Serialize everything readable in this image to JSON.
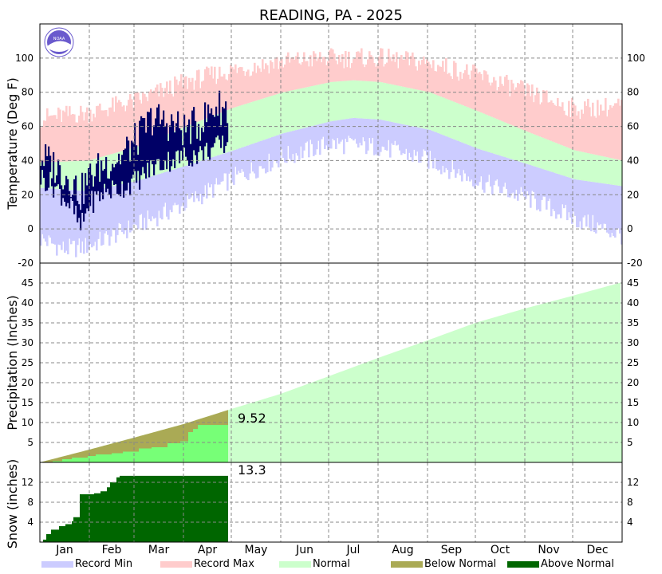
{
  "chart_data": {
    "type": "area",
    "title": "READING, PA - 2025",
    "months": [
      "Jan",
      "Feb",
      "Mar",
      "Apr",
      "May",
      "Jun",
      "Jul",
      "Aug",
      "Sep",
      "Oct",
      "Nov",
      "Dec"
    ],
    "colors": {
      "record_min": "#ccccff",
      "record_max": "#ffcccc",
      "normal": "#ccffcc",
      "below_normal": "#aaaa55",
      "above_normal": "#006600",
      "observed_temp": "#000066",
      "observed_precip": "#77ff77"
    },
    "legend": [
      {
        "key": "record_min",
        "label": "Record Min"
      },
      {
        "key": "record_max",
        "label": "Record Max"
      },
      {
        "key": "normal",
        "label": "Normal"
      },
      {
        "key": "below_normal",
        "label": "Below Normal"
      },
      {
        "key": "above_normal",
        "label": "Above Normal"
      }
    ],
    "temperature": {
      "ylabel": "Temperature (Deg F)",
      "ylim": [
        -20,
        120
      ],
      "ticks": [
        -20,
        0,
        20,
        40,
        60,
        80,
        100
      ],
      "normal_low_anchors": [
        [
          1,
          24
        ],
        [
          30,
          22
        ],
        [
          60,
          28
        ],
        [
          91,
          37
        ],
        [
          121,
          46
        ],
        [
          152,
          56
        ],
        [
          182,
          63
        ],
        [
          196,
          65
        ],
        [
          213,
          64
        ],
        [
          244,
          58
        ],
        [
          274,
          47
        ],
        [
          305,
          38
        ],
        [
          335,
          29
        ],
        [
          365,
          25
        ]
      ],
      "normal_high_anchors": [
        [
          1,
          39
        ],
        [
          30,
          40
        ],
        [
          60,
          48
        ],
        [
          91,
          60
        ],
        [
          121,
          71
        ],
        [
          152,
          80
        ],
        [
          182,
          86
        ],
        [
          196,
          87
        ],
        [
          213,
          86
        ],
        [
          244,
          80
        ],
        [
          274,
          69
        ],
        [
          305,
          57
        ],
        [
          335,
          46
        ],
        [
          365,
          40
        ]
      ],
      "record_low_anchors": [
        [
          1,
          -6
        ],
        [
          15,
          -12
        ],
        [
          30,
          -10
        ],
        [
          45,
          -4
        ],
        [
          60,
          2
        ],
        [
          91,
          15
        ],
        [
          121,
          30
        ],
        [
          152,
          42
        ],
        [
          182,
          50
        ],
        [
          213,
          48
        ],
        [
          244,
          40
        ],
        [
          274,
          28
        ],
        [
          305,
          18
        ],
        [
          335,
          6
        ],
        [
          365,
          -4
        ]
      ],
      "record_high_anchors": [
        [
          1,
          65
        ],
        [
          30,
          68
        ],
        [
          60,
          75
        ],
        [
          91,
          86
        ],
        [
          121,
          93
        ],
        [
          152,
          98
        ],
        [
          182,
          100
        ],
        [
          213,
          100
        ],
        [
          244,
          97
        ],
        [
          274,
          90
        ],
        [
          305,
          80
        ],
        [
          335,
          70
        ],
        [
          365,
          72
        ]
      ],
      "observed_days": 118,
      "observed_high_anchors": [
        [
          1,
          42
        ],
        [
          10,
          36
        ],
        [
          20,
          28
        ],
        [
          25,
          20
        ],
        [
          30,
          30
        ],
        [
          40,
          38
        ],
        [
          50,
          42
        ],
        [
          60,
          52
        ],
        [
          70,
          65
        ],
        [
          80,
          62
        ],
        [
          90,
          58
        ],
        [
          100,
          62
        ],
        [
          110,
          72
        ],
        [
          118,
          70
        ]
      ],
      "observed_low_anchors": [
        [
          1,
          30
        ],
        [
          10,
          24
        ],
        [
          20,
          12
        ],
        [
          25,
          0
        ],
        [
          30,
          14
        ],
        [
          40,
          22
        ],
        [
          50,
          24
        ],
        [
          60,
          28
        ],
        [
          70,
          36
        ],
        [
          80,
          40
        ],
        [
          90,
          42
        ],
        [
          100,
          44
        ],
        [
          110,
          48
        ],
        [
          118,
          50
        ]
      ]
    },
    "precipitation": {
      "ylabel": "Precipitation (Inches)",
      "ylim": [
        0,
        50
      ],
      "ticks": [
        5,
        10,
        15,
        20,
        25,
        30,
        35,
        40,
        45
      ],
      "normal_cumulative_anchors": [
        [
          0,
          0
        ],
        [
          31,
          3.2
        ],
        [
          59,
          6.2
        ],
        [
          90,
          9.6
        ],
        [
          120,
          13.4
        ],
        [
          151,
          17.2
        ],
        [
          181,
          21.6
        ],
        [
          212,
          26.2
        ],
        [
          243,
          30.6
        ],
        [
          273,
          35.0
        ],
        [
          304,
          38.6
        ],
        [
          334,
          41.8
        ],
        [
          365,
          45.2
        ]
      ],
      "observed_cumulative_steps": [
        [
          0,
          0
        ],
        [
          8,
          0.3
        ],
        [
          14,
          0.8
        ],
        [
          20,
          1.2
        ],
        [
          30,
          1.6
        ],
        [
          35,
          2.0
        ],
        [
          45,
          2.3
        ],
        [
          52,
          2.7
        ],
        [
          62,
          3.5
        ],
        [
          70,
          3.8
        ],
        [
          80,
          4.8
        ],
        [
          88,
          5.3
        ],
        [
          93,
          7.6
        ],
        [
          96,
          8.4
        ],
        [
          99,
          9.4
        ],
        [
          118,
          9.52
        ]
      ],
      "total_label": "9.52"
    },
    "snow": {
      "ylabel": "Snow (inches)",
      "ylim": [
        0,
        16
      ],
      "ticks": [
        4,
        8,
        12
      ],
      "observed_cumulative_steps": [
        [
          0,
          0
        ],
        [
          2,
          0.5
        ],
        [
          4,
          1.6
        ],
        [
          7,
          2.5
        ],
        [
          12,
          3.2
        ],
        [
          16,
          3.6
        ],
        [
          20,
          4.2
        ],
        [
          21,
          5.0
        ],
        [
          25,
          9.6
        ],
        [
          33,
          9.6
        ],
        [
          34,
          9.8
        ],
        [
          38,
          10.2
        ],
        [
          42,
          11.0
        ],
        [
          44,
          12.0
        ],
        [
          48,
          13.0
        ],
        [
          50,
          13.3
        ],
        [
          118,
          13.3
        ]
      ],
      "total_label": "13.3"
    }
  }
}
